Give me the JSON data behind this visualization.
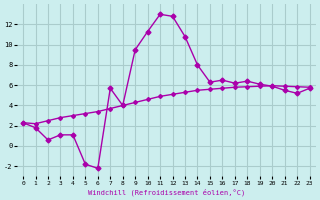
{
  "xlabel": "Windchill (Refroidissement éolien,°C)",
  "bg_color": "#cceeee",
  "grid_color": "#aacccc",
  "line_color": "#aa00aa",
  "x_jagged": [
    0,
    1,
    2,
    3,
    4,
    5,
    6,
    7,
    8,
    9,
    10,
    11,
    12,
    13,
    14,
    15,
    16,
    17,
    18,
    19,
    20,
    21,
    22,
    23
  ],
  "y_jagged": [
    2.3,
    1.8,
    0.6,
    1.1,
    1.1,
    -1.8,
    -2.2,
    5.7,
    4.0,
    9.5,
    11.3,
    13.0,
    12.8,
    10.8,
    8.0,
    6.3,
    6.5,
    6.2,
    6.4,
    6.1,
    5.9,
    5.5,
    5.2,
    5.7
  ],
  "x_smooth": [
    0,
    1,
    2,
    3,
    4,
    5,
    6,
    7,
    8,
    9,
    10,
    11,
    12,
    13,
    14,
    15,
    16,
    17,
    18,
    19,
    20,
    21,
    22,
    23
  ],
  "y_smooth": [
    2.3,
    2.2,
    2.5,
    2.8,
    3.0,
    3.2,
    3.4,
    3.7,
    4.0,
    4.3,
    4.6,
    4.9,
    5.1,
    5.3,
    5.5,
    5.6,
    5.7,
    5.8,
    5.85,
    5.9,
    5.95,
    5.9,
    5.85,
    5.8
  ],
  "xlim": [
    -0.5,
    23.5
  ],
  "ylim": [
    -3,
    14
  ],
  "yticks": [
    -2,
    0,
    2,
    4,
    6,
    8,
    10,
    12
  ],
  "xticks": [
    0,
    1,
    2,
    3,
    4,
    5,
    6,
    7,
    8,
    9,
    10,
    11,
    12,
    13,
    14,
    15,
    16,
    17,
    18,
    19,
    20,
    21,
    22,
    23
  ]
}
